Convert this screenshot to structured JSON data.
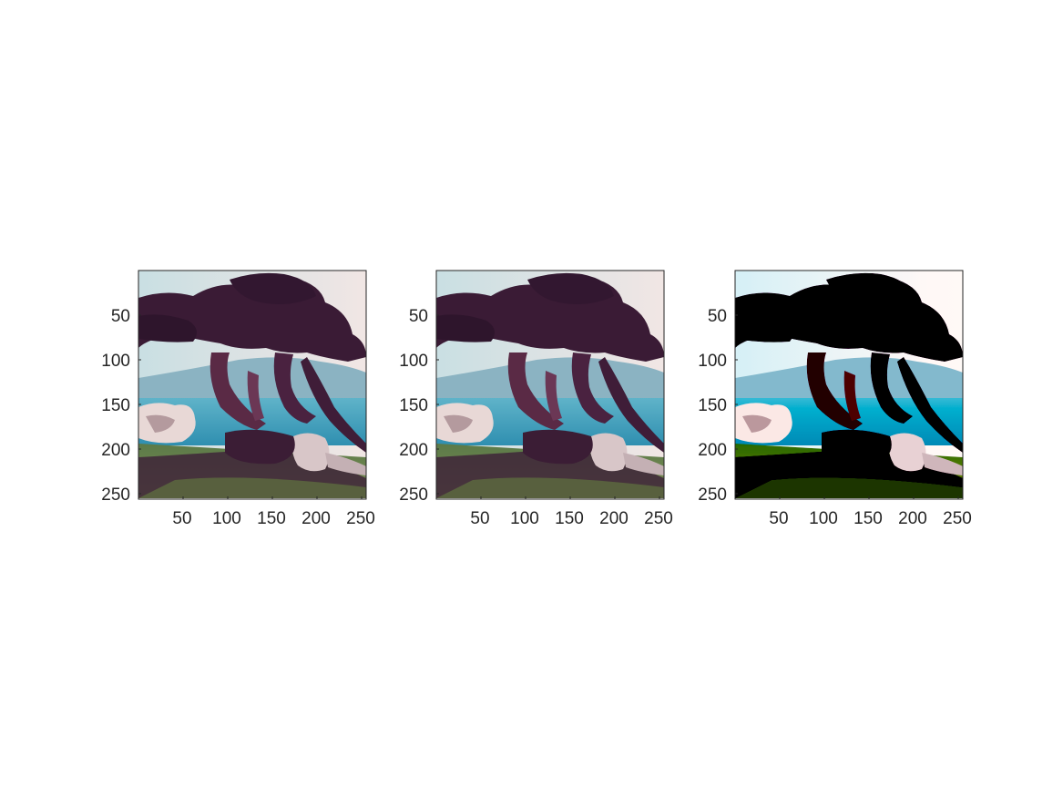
{
  "figure": {
    "background": "#ffffff",
    "axis_color": "#262626",
    "panels": [
      {
        "image": "cypress-tree-original",
        "x_ticks": [
          "50",
          "100",
          "150",
          "200",
          "250"
        ],
        "y_ticks": [
          "50",
          "100",
          "150",
          "200",
          "250"
        ]
      },
      {
        "image": "cypress-tree-reconstructed",
        "x_ticks": [
          "50",
          "100",
          "150",
          "200",
          "250"
        ],
        "y_ticks": [
          "50",
          "100",
          "150",
          "200",
          "250"
        ]
      },
      {
        "image": "cypress-tree-high-contrast",
        "x_ticks": [
          "50",
          "100",
          "150",
          "200",
          "250"
        ],
        "y_ticks": [
          "50",
          "100",
          "150",
          "200",
          "250"
        ]
      }
    ]
  }
}
